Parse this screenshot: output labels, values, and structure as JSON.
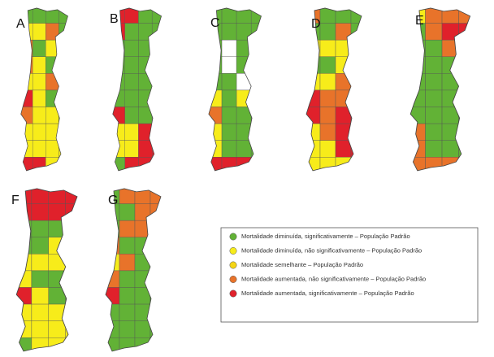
{
  "panels": [
    {
      "label": "A"
    },
    {
      "label": "B"
    },
    {
      "label": "C"
    },
    {
      "label": "D"
    },
    {
      "label": "E"
    },
    {
      "label": "F"
    },
    {
      "label": "G"
    }
  ],
  "legend": {
    "items": [
      {
        "text": "Mortalidade diminuída, significativamente – População Padrão",
        "color": "#62b236"
      },
      {
        "text": "Mortalidade diminuída, não significativamente – População Padrão",
        "color": "#f7ec1a"
      },
      {
        "text": "Mortalidade semelhante – População Padrão",
        "color": "#f5d515"
      },
      {
        "text": "Mortalidade aumentada, não significativamente – População Padrão",
        "color": "#e8732a"
      },
      {
        "text": "Mortalidade aumentada, significativamente – População Padrão",
        "color": "#e0212b"
      }
    ]
  }
}
